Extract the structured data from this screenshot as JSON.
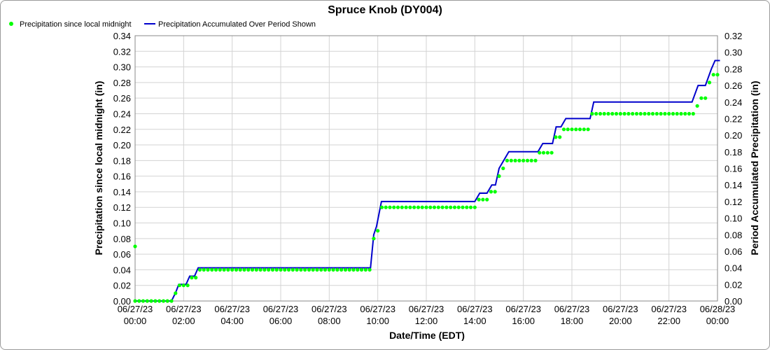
{
  "chart_data": {
    "type": "line",
    "title": "Spruce Knob (DY004)",
    "xlabel": "Date/Time (EDT)",
    "ylabel_left": "Precipitation since local midnight (in)",
    "ylabel_right": "Period Accumulated Precipitation (in)",
    "ylim_left": [
      0,
      0.34
    ],
    "ylim_right": [
      0,
      0.32
    ],
    "xlim_hours": [
      0,
      24
    ],
    "grid": true,
    "legend_position": "top-left",
    "colors": {
      "scatter": "#00ff00",
      "line": "#0000cc"
    },
    "y_ticks_left": [
      "0.00",
      "0.02",
      "0.04",
      "0.06",
      "0.08",
      "0.10",
      "0.12",
      "0.14",
      "0.16",
      "0.18",
      "0.20",
      "0.22",
      "0.24",
      "0.26",
      "0.28",
      "0.30",
      "0.32",
      "0.34"
    ],
    "y_ticks_right": [
      "0.00",
      "0.02",
      "0.04",
      "0.06",
      "0.08",
      "0.10",
      "0.12",
      "0.14",
      "0.16",
      "0.18",
      "0.20",
      "0.22",
      "0.24",
      "0.26",
      "0.28",
      "0.30",
      "0.32"
    ],
    "x_ticks": [
      {
        "date": "06/27/23",
        "time": "00:00"
      },
      {
        "date": "06/27/23",
        "time": "02:00"
      },
      {
        "date": "06/27/23",
        "time": "04:00"
      },
      {
        "date": "06/27/23",
        "time": "06:00"
      },
      {
        "date": "06/27/23",
        "time": "08:00"
      },
      {
        "date": "06/27/23",
        "time": "10:00"
      },
      {
        "date": "06/27/23",
        "time": "12:00"
      },
      {
        "date": "06/27/23",
        "time": "14:00"
      },
      {
        "date": "06/27/23",
        "time": "16:00"
      },
      {
        "date": "06/27/23",
        "time": "18:00"
      },
      {
        "date": "06/27/23",
        "time": "20:00"
      },
      {
        "date": "06/27/23",
        "time": "22:00"
      },
      {
        "date": "06/28/23",
        "time": "00:00"
      }
    ],
    "series": [
      {
        "name": "Precipitation since local midnight",
        "kind": "scatter",
        "axis": "left",
        "points": [
          [
            0.0,
            0.07
          ],
          [
            0.0,
            0.0
          ],
          [
            0.167,
            0.0
          ],
          [
            0.333,
            0.0
          ],
          [
            0.5,
            0.0
          ],
          [
            0.667,
            0.0
          ],
          [
            0.833,
            0.0
          ],
          [
            1.0,
            0.0
          ],
          [
            1.167,
            0.0
          ],
          [
            1.333,
            0.0
          ],
          [
            1.5,
            0.0
          ],
          [
            1.667,
            0.01
          ],
          [
            1.833,
            0.02
          ],
          [
            2.0,
            0.02
          ],
          [
            2.167,
            0.02
          ],
          [
            2.333,
            0.03
          ],
          [
            2.5,
            0.03
          ],
          [
            2.667,
            0.04
          ],
          [
            2.833,
            0.04
          ],
          [
            3.0,
            0.04
          ],
          [
            3.167,
            0.04
          ],
          [
            3.333,
            0.04
          ],
          [
            3.5,
            0.04
          ],
          [
            3.667,
            0.04
          ],
          [
            3.833,
            0.04
          ],
          [
            4.0,
            0.04
          ],
          [
            4.167,
            0.04
          ],
          [
            4.333,
            0.04
          ],
          [
            4.5,
            0.04
          ],
          [
            4.667,
            0.04
          ],
          [
            4.833,
            0.04
          ],
          [
            5.0,
            0.04
          ],
          [
            5.167,
            0.04
          ],
          [
            5.333,
            0.04
          ],
          [
            5.5,
            0.04
          ],
          [
            5.667,
            0.04
          ],
          [
            5.833,
            0.04
          ],
          [
            6.0,
            0.04
          ],
          [
            6.167,
            0.04
          ],
          [
            6.333,
            0.04
          ],
          [
            6.5,
            0.04
          ],
          [
            6.667,
            0.04
          ],
          [
            6.833,
            0.04
          ],
          [
            7.0,
            0.04
          ],
          [
            7.167,
            0.04
          ],
          [
            7.333,
            0.04
          ],
          [
            7.5,
            0.04
          ],
          [
            7.667,
            0.04
          ],
          [
            7.833,
            0.04
          ],
          [
            8.0,
            0.04
          ],
          [
            8.167,
            0.04
          ],
          [
            8.333,
            0.04
          ],
          [
            8.5,
            0.04
          ],
          [
            8.667,
            0.04
          ],
          [
            8.833,
            0.04
          ],
          [
            9.0,
            0.04
          ],
          [
            9.167,
            0.04
          ],
          [
            9.333,
            0.04
          ],
          [
            9.5,
            0.04
          ],
          [
            9.667,
            0.04
          ],
          [
            9.833,
            0.08
          ],
          [
            10.0,
            0.09
          ],
          [
            10.167,
            0.12
          ],
          [
            10.333,
            0.12
          ],
          [
            10.5,
            0.12
          ],
          [
            10.667,
            0.12
          ],
          [
            10.833,
            0.12
          ],
          [
            11.0,
            0.12
          ],
          [
            11.167,
            0.12
          ],
          [
            11.333,
            0.12
          ],
          [
            11.5,
            0.12
          ],
          [
            11.667,
            0.12
          ],
          [
            11.833,
            0.12
          ],
          [
            12.0,
            0.12
          ],
          [
            12.167,
            0.12
          ],
          [
            12.333,
            0.12
          ],
          [
            12.5,
            0.12
          ],
          [
            12.667,
            0.12
          ],
          [
            12.833,
            0.12
          ],
          [
            13.0,
            0.12
          ],
          [
            13.167,
            0.12
          ],
          [
            13.333,
            0.12
          ],
          [
            13.5,
            0.12
          ],
          [
            13.667,
            0.12
          ],
          [
            13.833,
            0.12
          ],
          [
            14.0,
            0.12
          ],
          [
            14.167,
            0.13
          ],
          [
            14.333,
            0.13
          ],
          [
            14.5,
            0.13
          ],
          [
            14.667,
            0.14
          ],
          [
            14.833,
            0.14
          ],
          [
            15.0,
            0.16
          ],
          [
            15.167,
            0.17
          ],
          [
            15.333,
            0.18
          ],
          [
            15.5,
            0.18
          ],
          [
            15.667,
            0.18
          ],
          [
            15.833,
            0.18
          ],
          [
            16.0,
            0.18
          ],
          [
            16.167,
            0.18
          ],
          [
            16.333,
            0.18
          ],
          [
            16.5,
            0.18
          ],
          [
            16.667,
            0.19
          ],
          [
            16.833,
            0.19
          ],
          [
            17.0,
            0.19
          ],
          [
            17.167,
            0.19
          ],
          [
            17.333,
            0.21
          ],
          [
            17.5,
            0.21
          ],
          [
            17.667,
            0.22
          ],
          [
            17.833,
            0.22
          ],
          [
            18.0,
            0.22
          ],
          [
            18.167,
            0.22
          ],
          [
            18.333,
            0.22
          ],
          [
            18.5,
            0.22
          ],
          [
            18.667,
            0.22
          ],
          [
            18.833,
            0.24
          ],
          [
            19.0,
            0.24
          ],
          [
            19.167,
            0.24
          ],
          [
            19.333,
            0.24
          ],
          [
            19.5,
            0.24
          ],
          [
            19.667,
            0.24
          ],
          [
            19.833,
            0.24
          ],
          [
            20.0,
            0.24
          ],
          [
            20.167,
            0.24
          ],
          [
            20.333,
            0.24
          ],
          [
            20.5,
            0.24
          ],
          [
            20.667,
            0.24
          ],
          [
            20.833,
            0.24
          ],
          [
            21.0,
            0.24
          ],
          [
            21.167,
            0.24
          ],
          [
            21.333,
            0.24
          ],
          [
            21.5,
            0.24
          ],
          [
            21.667,
            0.24
          ],
          [
            21.833,
            0.24
          ],
          [
            22.0,
            0.24
          ],
          [
            22.167,
            0.24
          ],
          [
            22.333,
            0.24
          ],
          [
            22.5,
            0.24
          ],
          [
            22.667,
            0.24
          ],
          [
            22.833,
            0.24
          ],
          [
            23.0,
            0.24
          ],
          [
            23.167,
            0.25
          ],
          [
            23.333,
            0.26
          ],
          [
            23.5,
            0.26
          ],
          [
            23.667,
            0.28
          ],
          [
            23.833,
            0.29
          ],
          [
            24.0,
            0.29
          ]
        ]
      },
      {
        "name": "Precipitation Accumulated Over Period Shown",
        "kind": "line",
        "axis": "right",
        "points": [
          [
            0.0,
            0.0
          ],
          [
            1.5,
            0.0
          ],
          [
            1.667,
            0.01
          ],
          [
            1.8,
            0.02
          ],
          [
            2.1,
            0.02
          ],
          [
            2.25,
            0.03
          ],
          [
            2.45,
            0.03
          ],
          [
            2.6,
            0.04
          ],
          [
            9.7,
            0.04
          ],
          [
            9.833,
            0.08
          ],
          [
            9.95,
            0.09
          ],
          [
            10.15,
            0.12
          ],
          [
            14.0,
            0.12
          ],
          [
            14.2,
            0.13
          ],
          [
            14.5,
            0.13
          ],
          [
            14.7,
            0.14
          ],
          [
            14.85,
            0.14
          ],
          [
            15.0,
            0.16
          ],
          [
            15.2,
            0.17
          ],
          [
            15.4,
            0.18
          ],
          [
            16.6,
            0.18
          ],
          [
            16.8,
            0.19
          ],
          [
            17.2,
            0.19
          ],
          [
            17.35,
            0.21
          ],
          [
            17.55,
            0.21
          ],
          [
            17.75,
            0.22
          ],
          [
            18.75,
            0.22
          ],
          [
            18.9,
            0.24
          ],
          [
            22.95,
            0.24
          ],
          [
            23.2,
            0.26
          ],
          [
            23.5,
            0.26
          ],
          [
            23.75,
            0.28
          ],
          [
            23.9,
            0.29
          ],
          [
            24.1,
            0.29
          ]
        ]
      }
    ]
  }
}
